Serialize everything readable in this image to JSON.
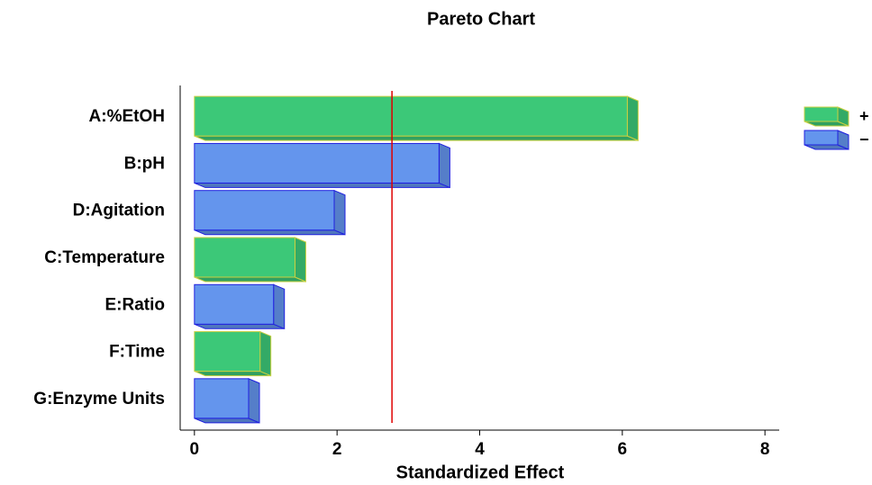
{
  "chart_data": {
    "type": "bar",
    "orientation": "horizontal",
    "title": "Pareto Chart",
    "x_label": "Standardized Effect",
    "categories": [
      "A:%EtOH",
      "B:pH",
      "D:Agitation",
      "C:Temperature",
      "E:Ratio",
      "F:Time",
      "G:Enzyme Units"
    ],
    "series": [
      {
        "name": "+",
        "color": "#3cc878",
        "values": [
          6.07,
          null,
          null,
          1.41,
          null,
          0.92,
          null
        ]
      },
      {
        "name": "−",
        "color": "#6495ed",
        "values": [
          null,
          3.43,
          1.96,
          null,
          1.11,
          null,
          0.76
        ]
      }
    ],
    "xlim": [
      -0.2,
      8.2
    ],
    "xticks": [
      0,
      2,
      4,
      6,
      8
    ],
    "threshold": 2.77,
    "threshold_color": "#e00000",
    "legend": "top-right"
  }
}
